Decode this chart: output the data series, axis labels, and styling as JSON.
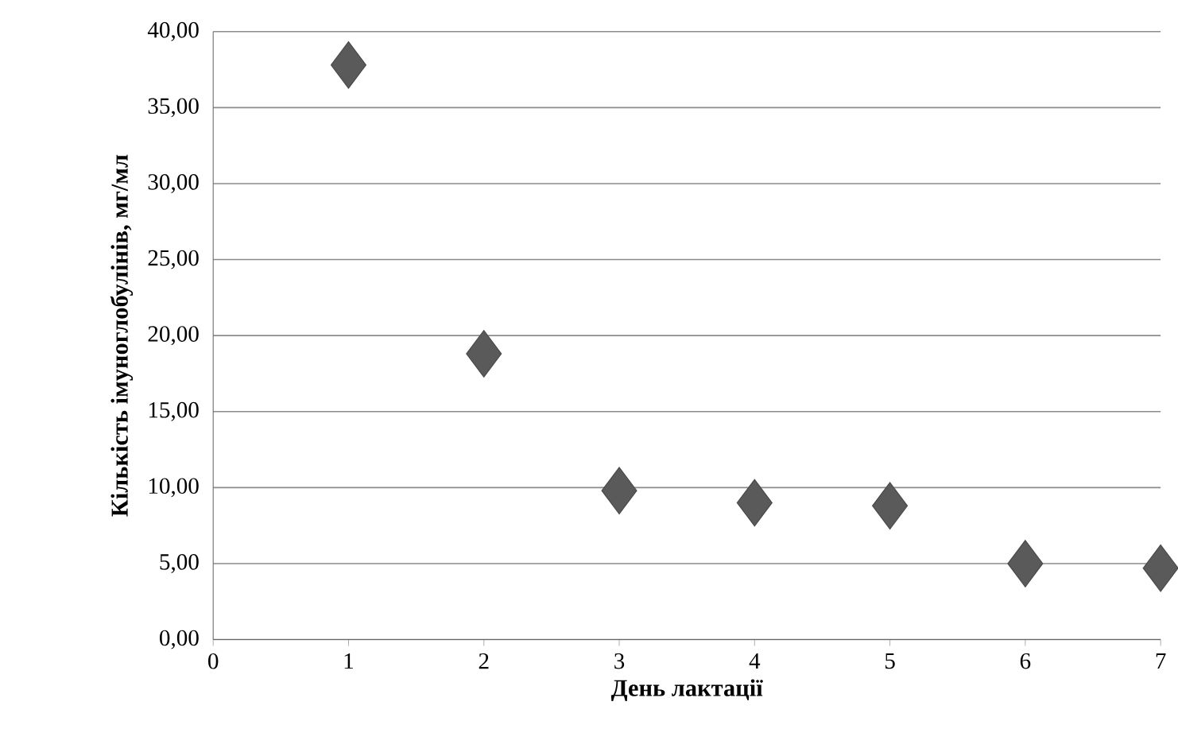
{
  "chart_data": {
    "type": "scatter",
    "xlabel": "День лактації",
    "ylabel": "Кількість імуноглобулінів, мг/мл",
    "x": [
      1,
      2,
      3,
      4,
      5,
      6,
      7
    ],
    "values": [
      37.8,
      18.8,
      9.8,
      9.0,
      8.8,
      5.0,
      4.7
    ],
    "color": "#5a5a5a",
    "marker": "diamond",
    "grid": "y",
    "xlim": [
      0,
      7
    ],
    "xticks": [
      0,
      1,
      2,
      3,
      4,
      5,
      6,
      7
    ],
    "ylim": [
      0,
      40
    ],
    "yticks": [
      {
        "value": 0,
        "label": "0,00"
      },
      {
        "value": 5,
        "label": "5,00"
      },
      {
        "value": 10,
        "label": "10,00"
      },
      {
        "value": 15,
        "label": "15,00"
      },
      {
        "value": 20,
        "label": "20,00"
      },
      {
        "value": 25,
        "label": "25,00"
      },
      {
        "value": 30,
        "label": "30,00"
      },
      {
        "value": 35,
        "label": "35,00"
      },
      {
        "value": 40,
        "label": "40,00"
      }
    ]
  }
}
